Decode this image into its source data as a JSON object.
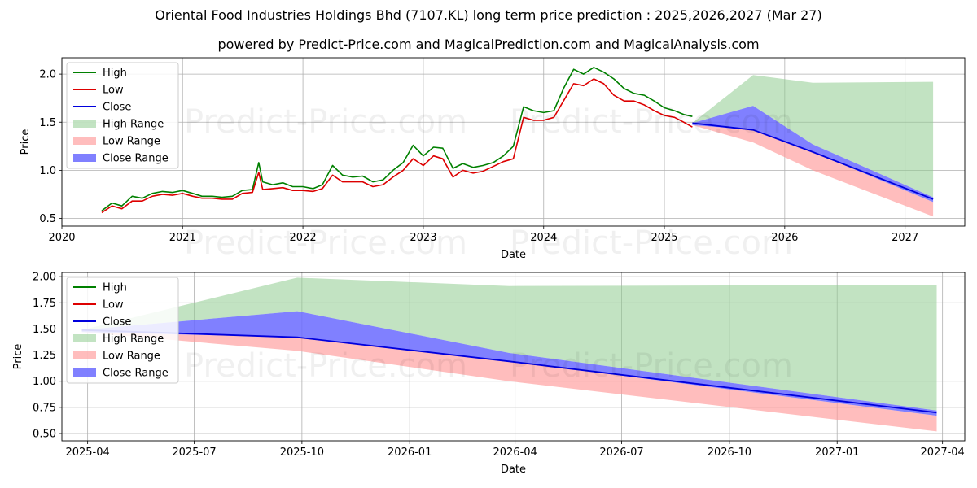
{
  "title": "Oriental Food Industries Holdings Bhd (7107.KL) long term price prediction : 2025,2026,2027 (Mar 27)",
  "subtitle": "powered by Predict-Price.com and MagicalPrediction.com and MagicalAnalysis.com",
  "watermark": "Predict-Price.com",
  "colors": {
    "high": "#008000",
    "low": "#dd0000",
    "close": "#0000dd",
    "high_range": "#8fcc8f",
    "low_range": "#ff9a9a",
    "close_range": "#6a6aff",
    "grid": "#b0b0b0"
  },
  "chart_data": [
    {
      "type": "line",
      "xlabel": "Date",
      "ylabel": "Price",
      "xlim": [
        "2020-01-01",
        "2027-07-01"
      ],
      "ylim": [
        0.42,
        2.17
      ],
      "x_ticks": [
        "2020",
        "2021",
        "2022",
        "2023",
        "2024",
        "2025",
        "2026",
        "2027"
      ],
      "y_ticks": [
        "0.5",
        "1.0",
        "1.5",
        "2.0"
      ],
      "legend_position": "top-left",
      "legend": [
        "High",
        "Low",
        "Close",
        "High Range",
        "Low Range",
        "Close Range"
      ],
      "history": {
        "dates": [
          "2020-05-01",
          "2020-06-01",
          "2020-07-01",
          "2020-08-01",
          "2020-09-01",
          "2020-10-01",
          "2020-11-01",
          "2020-12-01",
          "2021-01-01",
          "2021-02-01",
          "2021-03-01",
          "2021-04-01",
          "2021-05-01",
          "2021-06-01",
          "2021-07-01",
          "2021-08-01",
          "2021-08-20",
          "2021-09-01",
          "2021-10-01",
          "2021-11-01",
          "2021-12-01",
          "2022-01-01",
          "2022-02-01",
          "2022-03-01",
          "2022-04-01",
          "2022-05-01",
          "2022-06-01",
          "2022-07-01",
          "2022-08-01",
          "2022-09-01",
          "2022-10-01",
          "2022-11-01",
          "2022-12-01",
          "2023-01-01",
          "2023-02-01",
          "2023-03-01",
          "2023-04-01",
          "2023-05-01",
          "2023-06-01",
          "2023-07-01",
          "2023-08-01",
          "2023-09-01",
          "2023-10-01",
          "2023-11-01",
          "2023-12-01",
          "2024-01-01",
          "2024-02-01",
          "2024-03-01",
          "2024-04-01",
          "2024-05-01",
          "2024-06-01",
          "2024-07-01",
          "2024-08-01",
          "2024-09-01",
          "2024-10-01",
          "2024-11-01",
          "2024-12-01",
          "2025-01-01",
          "2025-02-01",
          "2025-03-01",
          "2025-03-27"
        ],
        "high": [
          0.58,
          0.66,
          0.63,
          0.73,
          0.71,
          0.76,
          0.78,
          0.77,
          0.79,
          0.76,
          0.73,
          0.73,
          0.72,
          0.73,
          0.79,
          0.8,
          1.08,
          0.88,
          0.85,
          0.87,
          0.83,
          0.83,
          0.81,
          0.85,
          1.05,
          0.95,
          0.93,
          0.94,
          0.88,
          0.9,
          1.0,
          1.08,
          1.26,
          1.15,
          1.24,
          1.23,
          1.02,
          1.07,
          1.03,
          1.05,
          1.08,
          1.15,
          1.25,
          1.66,
          1.62,
          1.6,
          1.62,
          1.85,
          2.05,
          2.0,
          2.07,
          2.02,
          1.95,
          1.85,
          1.8,
          1.78,
          1.72,
          1.65,
          1.62,
          1.58,
          1.56
        ],
        "low": [
          0.56,
          0.63,
          0.6,
          0.68,
          0.68,
          0.73,
          0.75,
          0.74,
          0.76,
          0.73,
          0.71,
          0.71,
          0.7,
          0.7,
          0.76,
          0.77,
          0.98,
          0.8,
          0.81,
          0.82,
          0.79,
          0.79,
          0.78,
          0.81,
          0.95,
          0.88,
          0.88,
          0.88,
          0.83,
          0.85,
          0.93,
          1.0,
          1.12,
          1.05,
          1.15,
          1.12,
          0.93,
          1.0,
          0.97,
          0.99,
          1.04,
          1.09,
          1.12,
          1.55,
          1.52,
          1.52,
          1.55,
          1.72,
          1.9,
          1.88,
          1.95,
          1.9,
          1.78,
          1.72,
          1.72,
          1.68,
          1.62,
          1.57,
          1.55,
          1.5,
          1.45
        ]
      },
      "forecast": {
        "dates": [
          "2025-03-27",
          "2025-09-27",
          "2026-03-27",
          "2027-03-27"
        ],
        "close": [
          1.49,
          1.42,
          1.19,
          0.7
        ],
        "high_range": [
          1.49,
          1.99,
          1.91,
          1.92
        ],
        "close_range_upper": [
          1.49,
          1.67,
          1.27,
          0.72
        ],
        "close_range_lower": [
          1.47,
          1.42,
          1.19,
          0.67
        ],
        "low_range": [
          1.47,
          1.29,
          1.0,
          0.52
        ]
      }
    },
    {
      "type": "line",
      "xlabel": "Date",
      "ylabel": "Price",
      "xlim": [
        "2025-03-10",
        "2027-04-20"
      ],
      "ylim": [
        0.43,
        2.04
      ],
      "x_ticks": [
        "2025-04",
        "2025-07",
        "2025-10",
        "2026-01",
        "2026-04",
        "2026-07",
        "2026-10",
        "2027-01",
        "2027-04"
      ],
      "y_ticks": [
        "0.50",
        "0.75",
        "1.00",
        "1.25",
        "1.50",
        "1.75",
        "2.00"
      ],
      "legend_position": "top-left",
      "legend": [
        "High",
        "Low",
        "Close",
        "High Range",
        "Low Range",
        "Close Range"
      ],
      "forecast": {
        "dates": [
          "2025-03-27",
          "2025-09-27",
          "2026-03-27",
          "2027-03-27"
        ],
        "close": [
          1.49,
          1.42,
          1.19,
          0.7
        ],
        "high_range": [
          1.49,
          1.99,
          1.91,
          1.92
        ],
        "close_range_upper": [
          1.49,
          1.67,
          1.27,
          0.72
        ],
        "close_range_lower": [
          1.47,
          1.42,
          1.19,
          0.67
        ],
        "low_range": [
          1.47,
          1.29,
          1.0,
          0.52
        ]
      }
    }
  ]
}
